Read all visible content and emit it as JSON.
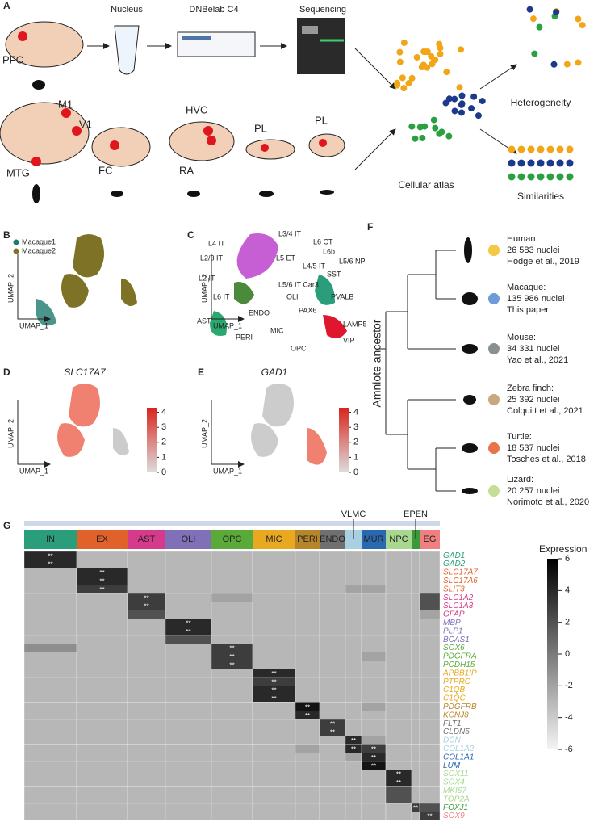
{
  "panel_labels": [
    "A",
    "B",
    "C",
    "D",
    "E",
    "F",
    "G"
  ],
  "panel_a": {
    "steps": [
      "Nucleus",
      "DNBelab C4",
      "Sequencing"
    ],
    "regions": [
      "PFC",
      "M1",
      "V1",
      "MTG",
      "FC",
      "HVC",
      "RA",
      "PL",
      "PL"
    ],
    "outcomes": [
      "Heterogeneity",
      "Cellular atlas",
      "Similarities"
    ]
  },
  "umap_axes": {
    "x": "UMAP_1",
    "y": "UMAP_2"
  },
  "panel_b": {
    "legend": [
      {
        "name": "Macaque1",
        "color": "#1f7a6e"
      },
      {
        "name": "Macaque2",
        "color": "#7d7226"
      }
    ]
  },
  "panel_c": {
    "clusters": [
      "L3/4 IT",
      "L4 IT",
      "L6 CT",
      "L6b",
      "L5/6 NP",
      "L2/3 IT",
      "L5 ET",
      "L4/5 IT",
      "L2 IT",
      "SST",
      "L5/6 IT Car3",
      "OLI",
      "L6 IT",
      "PVALB",
      "ENDO",
      "PAX6",
      "AST",
      "MIC",
      "LAMP5",
      "PERI",
      "VIP",
      "OPC"
    ]
  },
  "panel_d": {
    "gene": "SLC17A7"
  },
  "panel_e": {
    "gene": "GAD1"
  },
  "expression_scale": {
    "ticks": [
      0,
      1,
      2,
      3,
      4
    ],
    "lim": [
      0,
      4.3
    ]
  },
  "panel_f": {
    "axis_label": "Amniote ancestor",
    "species": [
      {
        "name": "Human:",
        "nuclei": "26 583 nuclei",
        "source": "Hodge et al., 2019",
        "color": "#f4c842"
      },
      {
        "name": "Macaque:",
        "nuclei": "135 986 nuclei",
        "source": "This paper",
        "color": "#6f9bd8"
      },
      {
        "name": "Mouse:",
        "nuclei": "34 331 nuclei",
        "source": "Yao et al., 2021",
        "color": "#8a8f92"
      },
      {
        "name": "Zebra finch:",
        "nuclei": "25 392 nuclei",
        "source": "Colquitt et al., 2021",
        "color": "#c9a880"
      },
      {
        "name": "Turtle:",
        "nuclei": "18 537 nuclei",
        "source": "Tosches et al., 2018",
        "color": "#e8744a"
      },
      {
        "name": "Lizard:",
        "nuclei": "20 257 nuclei",
        "source": "Norimoto et al., 2020",
        "color": "#c6dd96"
      }
    ]
  },
  "panel_g": {
    "groups": [
      {
        "name": "IN",
        "color": "#2a9d7a"
      },
      {
        "name": "EX",
        "color": "#e0622a"
      },
      {
        "name": "AST",
        "color": "#d63a8a"
      },
      {
        "name": "OLI",
        "color": "#8070b8"
      },
      {
        "name": "OPC",
        "color": "#5aaa3a"
      },
      {
        "name": "MIC",
        "color": "#e8a820"
      },
      {
        "name": "PERI",
        "color": "#b8862a"
      },
      {
        "name": "ENDO",
        "color": "#707070"
      },
      {
        "name": "VLMC",
        "color": "#a8d0e0"
      },
      {
        "name": "MUR",
        "color": "#2a68b0"
      },
      {
        "name": "NPC",
        "color": "#a8d890"
      },
      {
        "name": "EPEN",
        "color": "#3a9a3a"
      },
      {
        "name": "EG",
        "color": "#f08080"
      }
    ],
    "genes": [
      {
        "name": "GAD1",
        "color": "#2a9d7a"
      },
      {
        "name": "GAD2",
        "color": "#2a9d7a"
      },
      {
        "name": "SLC17A7",
        "color": "#e0622a"
      },
      {
        "name": "SLC17A6",
        "color": "#e0622a"
      },
      {
        "name": "SLIT3",
        "color": "#e0622a"
      },
      {
        "name": "SLC1A2",
        "color": "#d63a8a"
      },
      {
        "name": "SLC1A3",
        "color": "#d63a8a"
      },
      {
        "name": "GFAP",
        "color": "#d63a8a"
      },
      {
        "name": "MBP",
        "color": "#8070b8"
      },
      {
        "name": "PLP1",
        "color": "#8070b8"
      },
      {
        "name": "BCAS1",
        "color": "#8070b8"
      },
      {
        "name": "SOX6",
        "color": "#5aaa3a"
      },
      {
        "name": "PDGFRA",
        "color": "#5aaa3a"
      },
      {
        "name": "PCDH15",
        "color": "#5aaa3a"
      },
      {
        "name": "APBB1IP",
        "color": "#e8a820"
      },
      {
        "name": "PTPRC",
        "color": "#e8a820"
      },
      {
        "name": "C1QB",
        "color": "#e8a820"
      },
      {
        "name": "C1QC",
        "color": "#e8a820"
      },
      {
        "name": "PDGFRB",
        "color": "#b8862a"
      },
      {
        "name": "KCNJ8",
        "color": "#b8862a"
      },
      {
        "name": "FLT1",
        "color": "#707070"
      },
      {
        "name": "CLDN5",
        "color": "#707070"
      },
      {
        "name": "DCN",
        "color": "#a8d0e0"
      },
      {
        "name": "COL1A2",
        "color": "#a8d0e0"
      },
      {
        "name": "COL1A1",
        "color": "#2a68b0"
      },
      {
        "name": "LUM",
        "color": "#2a68b0"
      },
      {
        "name": "SOX11",
        "color": "#a8d890"
      },
      {
        "name": "SOX4",
        "color": "#a8d890"
      },
      {
        "name": "MKI67",
        "color": "#a8d890"
      },
      {
        "name": "TOP2A",
        "color": "#a8d890"
      },
      {
        "name": "FOXJ1",
        "color": "#3a9a3a"
      },
      {
        "name": "SOX9",
        "color": "#f08080"
      }
    ],
    "values": [
      [
        4,
        -3,
        -3,
        -3,
        -3,
        -3,
        -3,
        -3,
        -3,
        -3,
        -3,
        -3,
        -3
      ],
      [
        4,
        -3,
        -3,
        -3,
        -3,
        -3,
        -3,
        -3,
        -3,
        -3,
        -3,
        -3,
        -3
      ],
      [
        -3,
        4,
        -3,
        -3,
        -3,
        -3,
        -3,
        -3,
        -3,
        -3,
        -3,
        -3,
        -3
      ],
      [
        -3,
        4,
        -3,
        -3,
        -3,
        -3,
        -3,
        -3,
        -3,
        -3,
        -3,
        -3,
        -3
      ],
      [
        -3,
        3,
        -3,
        -3,
        -3,
        -3,
        -3,
        -3,
        -2,
        -2,
        -3,
        -3,
        -3
      ],
      [
        -3,
        -3,
        3,
        -3,
        -2,
        -3,
        -3,
        -3,
        -3,
        -3,
        -3,
        -3,
        2
      ],
      [
        -3,
        -3,
        3,
        -3,
        -3,
        -3,
        -3,
        -3,
        -3,
        -3,
        -3,
        -3,
        2
      ],
      [
        -3,
        -3,
        2,
        -3,
        -3,
        -3,
        -3,
        -3,
        -3,
        -3,
        -3,
        -3,
        -2
      ],
      [
        -3,
        -3,
        -3,
        4,
        -3,
        -3,
        -3,
        -3,
        -3,
        -3,
        -3,
        -3,
        -3
      ],
      [
        -3,
        -3,
        -3,
        4,
        -3,
        -3,
        -3,
        -3,
        -3,
        -3,
        -3,
        -3,
        -3
      ],
      [
        -3,
        -3,
        -3,
        2,
        -3,
        -3,
        -3,
        -3,
        -3,
        -3,
        -3,
        -3,
        -3
      ],
      [
        -1,
        -3,
        -3,
        -3,
        3,
        -3,
        -3,
        -3,
        -3,
        -3,
        -3,
        -3,
        -3
      ],
      [
        -3,
        -3,
        -3,
        -3,
        3,
        -3,
        -3,
        -3,
        -3,
        -2,
        -3,
        -3,
        -3
      ],
      [
        -3,
        -3,
        -3,
        -3,
        3,
        -3,
        -3,
        -3,
        -3,
        -3,
        -3,
        -3,
        -3
      ],
      [
        -3,
        -3,
        -3,
        -3,
        -3,
        4,
        -3,
        -3,
        -3,
        -3,
        -3,
        -3,
        -3
      ],
      [
        -3,
        -3,
        -3,
        -3,
        -3,
        3,
        -3,
        -3,
        -3,
        -3,
        -3,
        -3,
        -3
      ],
      [
        -3,
        -3,
        -3,
        -3,
        -3,
        4,
        -3,
        -3,
        -3,
        -3,
        -3,
        -3,
        -3
      ],
      [
        -3,
        -3,
        -3,
        -3,
        -3,
        4,
        -3,
        -3,
        -3,
        -3,
        -3,
        -3,
        -3
      ],
      [
        -3,
        -3,
        -3,
        -3,
        -3,
        -3,
        5,
        -3,
        -3,
        -2,
        -3,
        -3,
        -3
      ],
      [
        -3,
        -3,
        -3,
        -3,
        -3,
        -3,
        4,
        -3,
        -3,
        -3,
        -3,
        -3,
        -3
      ],
      [
        -3,
        -3,
        -3,
        -3,
        -3,
        -3,
        -3,
        3,
        -3,
        -3,
        -3,
        -3,
        -3
      ],
      [
        -3,
        -3,
        -3,
        -3,
        -3,
        -3,
        -3,
        3,
        -3,
        -3,
        -3,
        -3,
        -3
      ],
      [
        -3,
        -3,
        -3,
        -3,
        -3,
        -3,
        -3,
        -3,
        4,
        -2,
        -3,
        -3,
        -3
      ],
      [
        -3,
        -3,
        -3,
        -3,
        -3,
        -3,
        -2,
        -3,
        4,
        3,
        -3,
        -3,
        -3
      ],
      [
        -3,
        -3,
        -3,
        -3,
        -3,
        -3,
        -3,
        -3,
        -2,
        4,
        -3,
        -3,
        -3
      ],
      [
        -3,
        -3,
        -3,
        -3,
        -3,
        -3,
        -3,
        -3,
        -3,
        5,
        -3,
        -3,
        -3
      ],
      [
        -3,
        -3,
        -3,
        -3,
        -3,
        -3,
        -3,
        -3,
        -3,
        -3,
        4,
        -3,
        -3
      ],
      [
        -3,
        -3,
        -3,
        -3,
        -3,
        -3,
        -3,
        -3,
        -3,
        -3,
        4,
        -3,
        -3
      ],
      [
        -3,
        -3,
        -3,
        -3,
        -3,
        -3,
        -3,
        -3,
        -3,
        -3,
        2,
        -3,
        -3
      ],
      [
        -3,
        -3,
        -3,
        -3,
        -3,
        -3,
        -3,
        -3,
        -3,
        -3,
        2,
        -3,
        -3
      ],
      [
        -3,
        -3,
        -3,
        -3,
        -3,
        -3,
        -3,
        -3,
        -3,
        -3,
        -3,
        3,
        2
      ],
      [
        -3,
        -3,
        -3,
        -3,
        -3,
        -3,
        -3,
        -3,
        -3,
        -3,
        -3,
        -3,
        3
      ]
    ],
    "marker_label": "**",
    "legend_title": "Expression",
    "ticks": [
      6,
      4,
      2,
      0,
      -2,
      -4,
      -6
    ],
    "lim": [
      -6,
      6
    ]
  }
}
